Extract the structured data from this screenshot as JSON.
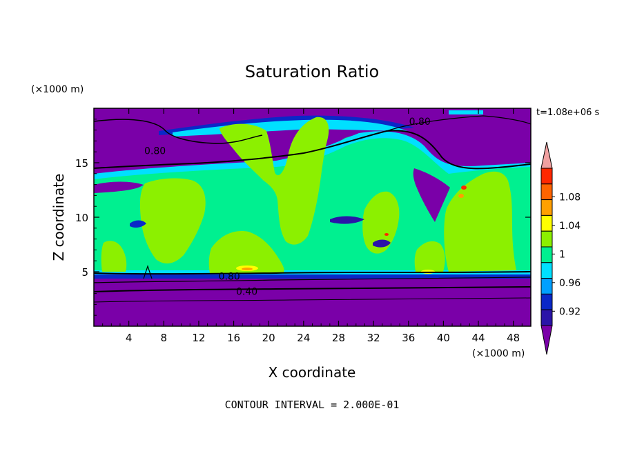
{
  "chart_data": {
    "type": "contour",
    "title": "Saturation Ratio",
    "xlabel": "X coordinate",
    "ylabel": "Z coordinate",
    "x_unit": "(×1000 m)",
    "y_unit": "(×1000 m)",
    "time_label": "t=1.08e+06 s",
    "footer": "CONTOUR INTERVAL = 2.000E-01",
    "xlim": [
      0,
      50
    ],
    "ylim": [
      0,
      20
    ],
    "x_ticks": [
      4,
      8,
      12,
      16,
      20,
      24,
      28,
      32,
      36,
      40,
      44,
      48
    ],
    "y_ticks": [
      5,
      10,
      15
    ],
    "colorbar": {
      "levels": [
        0.92,
        0.94,
        0.96,
        0.98,
        1.0,
        1.02,
        1.04,
        1.06,
        1.08,
        1.1
      ],
      "tick_labels": [
        "0.92",
        "0.96",
        "1",
        "1.04",
        "1.08"
      ],
      "tick_values": [
        0.92,
        0.96,
        1.0,
        1.04,
        1.08
      ],
      "colors": [
        "#7a00a8",
        "#2a14a8",
        "#0a28c8",
        "#00a0ff",
        "#00e0ff",
        "#00f090",
        "#8cf000",
        "#ffff00",
        "#ffa000",
        "#ff6400",
        "#ff2800",
        "#f0a0a0"
      ]
    },
    "contour_labels": [
      {
        "text": "0.80",
        "x": 37.3,
        "z": 18.8
      },
      {
        "text": "0.80",
        "x": 7.0,
        "z": 16.1
      },
      {
        "text": "0.80",
        "x": 15.5,
        "z": 4.6
      },
      {
        "text": "0.40",
        "x": 17.5,
        "z": 3.2
      }
    ],
    "colors": {
      "purple": "#7a00a8",
      "navy": "#2a14a8",
      "blue": "#0a28c8",
      "cyan": "#00e0ff",
      "green": "#00f090",
      "lime": "#8cf000",
      "yellow": "#ffff00",
      "orange": "#ffa000",
      "red": "#ff2800"
    }
  }
}
